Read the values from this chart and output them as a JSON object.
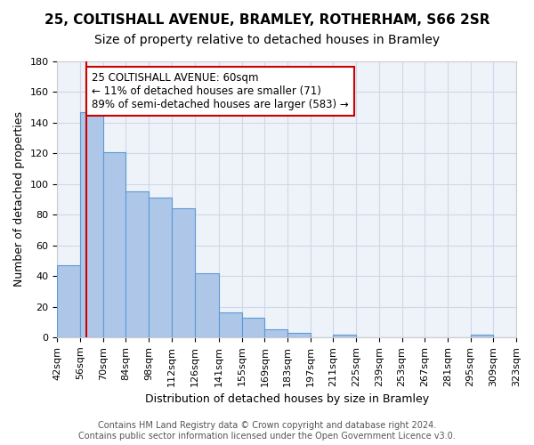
{
  "title1": "25, COLTISHALL AVENUE, BRAMLEY, ROTHERHAM, S66 2SR",
  "title2": "Size of property relative to detached houses in Bramley",
  "xlabel": "Distribution of detached houses by size in Bramley",
  "ylabel": "Number of detached properties",
  "bin_labels": [
    "42sqm",
    "56sqm",
    "70sqm",
    "84sqm",
    "98sqm",
    "112sqm",
    "126sqm",
    "141sqm",
    "155sqm",
    "169sqm",
    "183sqm",
    "197sqm",
    "211sqm",
    "225sqm",
    "239sqm",
    "253sqm",
    "267sqm",
    "281sqm",
    "295sqm",
    "309sqm",
    "323sqm"
  ],
  "bin_edges": [
    42,
    56,
    70,
    84,
    98,
    112,
    126,
    141,
    155,
    169,
    183,
    197,
    211,
    225,
    239,
    253,
    267,
    281,
    295,
    309,
    323
  ],
  "values": [
    47,
    147,
    121,
    95,
    91,
    84,
    42,
    16,
    13,
    5,
    3,
    0,
    2,
    0,
    0,
    0,
    0,
    0,
    2,
    0
  ],
  "bar_color": "#aec6e8",
  "bar_edge_color": "#5b9bd5",
  "property_line_x": 60,
  "annotation_text": "25 COLTISHALL AVENUE: 60sqm\n← 11% of detached houses are smaller (71)\n89% of semi-detached houses are larger (583) →",
  "annotation_box_color": "#ffffff",
  "annotation_box_edge": "#cc0000",
  "red_line_color": "#cc0000",
  "ylim": [
    0,
    180
  ],
  "yticks": [
    0,
    20,
    40,
    60,
    80,
    100,
    120,
    140,
    160,
    180
  ],
  "grid_color": "#d0d8e8",
  "background_color": "#eef2f9",
  "footer_text": "Contains HM Land Registry data © Crown copyright and database right 2024.\nContains public sector information licensed under the Open Government Licence v3.0.",
  "title1_fontsize": 11,
  "title2_fontsize": 10,
  "xlabel_fontsize": 9,
  "ylabel_fontsize": 9,
  "tick_fontsize": 8,
  "annotation_fontsize": 8.5,
  "footer_fontsize": 7
}
